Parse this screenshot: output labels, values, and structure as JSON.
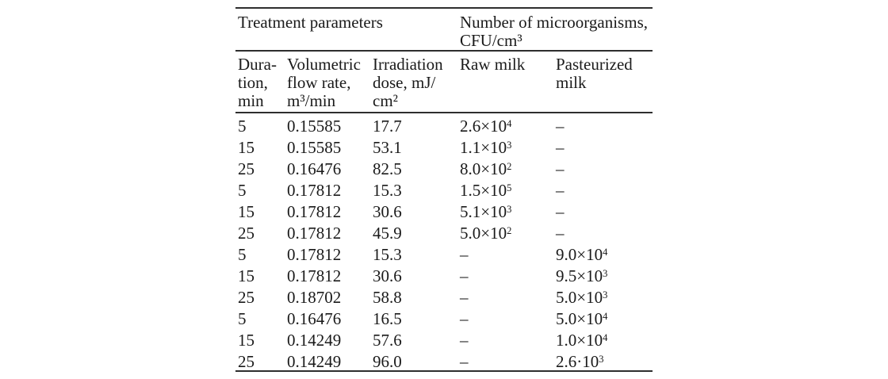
{
  "table": {
    "header": {
      "group1": "Treatment parameters",
      "group2": "Number of microorganisms,\nCFU/cm³",
      "columns": [
        "Dura-\ntion,\nmin",
        "Volumetric\nflow rate,\nm³/min",
        "Irradiation\ndose, mJ/\ncm²",
        "Raw milk",
        "Pasteurized\nmilk"
      ]
    },
    "rows": [
      {
        "duration": "5",
        "flow": "0.15585",
        "dose": "17.7",
        "raw": "2.6×10",
        "raw_exp": "4",
        "pasteurized": "–",
        "pasteurized_exp": ""
      },
      {
        "duration": "15",
        "flow": "0.15585",
        "dose": "53.1",
        "raw": "1.1×10",
        "raw_exp": "3",
        "pasteurized": "–",
        "pasteurized_exp": ""
      },
      {
        "duration": "25",
        "flow": "0.16476",
        "dose": "82.5",
        "raw": "8.0×10",
        "raw_exp": "2",
        "pasteurized": "–",
        "pasteurized_exp": ""
      },
      {
        "duration": "5",
        "flow": "0.17812",
        "dose": "15.3",
        "raw": "1.5×10",
        "raw_exp": "5",
        "pasteurized": "–",
        "pasteurized_exp": ""
      },
      {
        "duration": "15",
        "flow": "0.17812",
        "dose": "30.6",
        "raw": "5.1×10",
        "raw_exp": "3",
        "pasteurized": "–",
        "pasteurized_exp": ""
      },
      {
        "duration": "25",
        "flow": "0.17812",
        "dose": "45.9",
        "raw": "5.0×10",
        "raw_exp": "2",
        "pasteurized": "–",
        "pasteurized_exp": ""
      },
      {
        "duration": "5",
        "flow": "0.17812",
        "dose": "15.3",
        "raw": "–",
        "raw_exp": "",
        "pasteurized": "9.0×10",
        "pasteurized_exp": "4"
      },
      {
        "duration": "15",
        "flow": "0.17812",
        "dose": "30.6",
        "raw": "–",
        "raw_exp": "",
        "pasteurized": "9.5×10",
        "pasteurized_exp": "3"
      },
      {
        "duration": "25",
        "flow": "0.18702",
        "dose": "58.8",
        "raw": "–",
        "raw_exp": "",
        "pasteurized": "5.0×10",
        "pasteurized_exp": "3"
      },
      {
        "duration": "5",
        "flow": "0.16476",
        "dose": "16.5",
        "raw": "–",
        "raw_exp": "",
        "pasteurized": "5.0×10",
        "pasteurized_exp": "4"
      },
      {
        "duration": "15",
        "flow": "0.14249",
        "dose": "57.6",
        "raw": "–",
        "raw_exp": "",
        "pasteurized": "1.0×10",
        "pasteurized_exp": "4"
      },
      {
        "duration": "25",
        "flow": "0.14249",
        "dose": "96.0",
        "raw": "–",
        "raw_exp": "",
        "pasteurized": "2.6·10",
        "pasteurized_exp": "3"
      }
    ],
    "colors": {
      "text": "#1a1a1a",
      "rule": "#2e2e2e",
      "background": "#ffffff"
    }
  }
}
